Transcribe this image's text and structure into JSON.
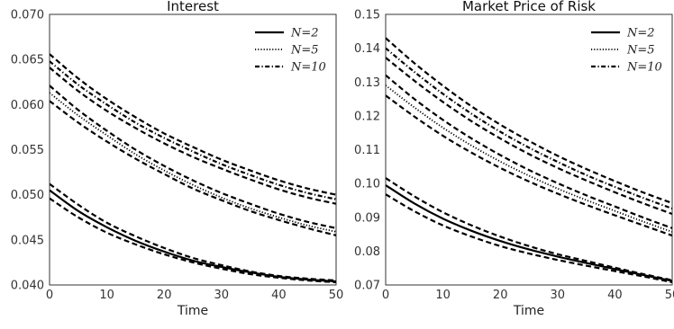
{
  "chart_data": [
    {
      "type": "line",
      "title": "Interest",
      "xlabel": "Time",
      "ylabel": "",
      "xlim": [
        0,
        50
      ],
      "ylim": [
        0.04,
        0.07
      ],
      "xticks": [
        "0",
        "10",
        "20",
        "30",
        "40",
        "50"
      ],
      "yticks": [
        "0.040",
        "0.045",
        "0.050",
        "0.055",
        "0.060",
        "0.065",
        "0.070"
      ],
      "legend_position": "top-right",
      "grid": false,
      "x": [
        0,
        5,
        10,
        15,
        20,
        25,
        30,
        35,
        40,
        45,
        50
      ],
      "series": [
        {
          "name": "N=2",
          "style": "solid",
          "values": [
            0.0505,
            0.0482,
            0.0464,
            0.0449,
            0.0437,
            0.0427,
            0.042,
            0.0414,
            0.0409,
            0.0406,
            0.0404
          ]
        },
        {
          "name": "N=2 upper band",
          "style": "dashed",
          "values": [
            0.0512,
            0.0489,
            0.0469,
            0.0454,
            0.0441,
            0.043,
            0.0422,
            0.0415,
            0.041,
            0.0407,
            0.0405
          ]
        },
        {
          "name": "N=2 lower band",
          "style": "dashed",
          "values": [
            0.0496,
            0.0475,
            0.0458,
            0.0445,
            0.0434,
            0.0425,
            0.0418,
            0.0412,
            0.0408,
            0.0405,
            0.0403
          ]
        },
        {
          "name": "N=5",
          "style": "dotted",
          "values": [
            0.0613,
            0.0588,
            0.0566,
            0.0545,
            0.0527,
            0.0511,
            0.0497,
            0.0485,
            0.0475,
            0.0466,
            0.0459
          ]
        },
        {
          "name": "N=5 upper band",
          "style": "dashed",
          "values": [
            0.0621,
            0.0594,
            0.0571,
            0.055,
            0.0532,
            0.0516,
            0.0502,
            0.049,
            0.0479,
            0.047,
            0.0463
          ]
        },
        {
          "name": "N=5 lower band",
          "style": "dashed",
          "values": [
            0.0604,
            0.058,
            0.0559,
            0.054,
            0.0523,
            0.0507,
            0.0494,
            0.0482,
            0.0472,
            0.0463,
            0.0455
          ]
        },
        {
          "name": "N=10",
          "style": "dashdot",
          "values": [
            0.0648,
            0.0622,
            0.06,
            0.058,
            0.0563,
            0.0548,
            0.0534,
            0.0522,
            0.0511,
            0.0502,
            0.0495
          ]
        },
        {
          "name": "N=10 upper band",
          "style": "dashed",
          "values": [
            0.0656,
            0.0629,
            0.0606,
            0.0586,
            0.0568,
            0.0553,
            0.0539,
            0.0527,
            0.0516,
            0.0507,
            0.05
          ]
        },
        {
          "name": "N=10 lower band",
          "style": "dashed",
          "values": [
            0.0641,
            0.0615,
            0.0593,
            0.0574,
            0.0557,
            0.0542,
            0.0529,
            0.0517,
            0.0506,
            0.0497,
            0.049
          ]
        }
      ]
    },
    {
      "type": "line",
      "title": "Market Price of Risk",
      "xlabel": "Time",
      "ylabel": "",
      "xlim": [
        0,
        50
      ],
      "ylim": [
        0.07,
        0.15
      ],
      "xticks": [
        "0",
        "10",
        "20",
        "30",
        "40",
        "50"
      ],
      "yticks": [
        "0.07",
        "0.08",
        "0.09",
        "0.10",
        "0.11",
        "0.12",
        "0.13",
        "0.14",
        "0.15"
      ],
      "legend_position": "top-right",
      "grid": false,
      "x": [
        0,
        5,
        10,
        15,
        20,
        25,
        30,
        35,
        40,
        45,
        50
      ],
      "series": [
        {
          "name": "N=2",
          "style": "solid",
          "values": [
            0.0995,
            0.0941,
            0.0896,
            0.086,
            0.083,
            0.0805,
            0.0784,
            0.0765,
            0.0747,
            0.0729,
            0.0712
          ]
        },
        {
          "name": "N=2 upper band",
          "style": "dashed",
          "values": [
            0.1016,
            0.0962,
            0.0915,
            0.0876,
            0.0843,
            0.0815,
            0.0791,
            0.0771,
            0.0751,
            0.0732,
            0.0714
          ]
        },
        {
          "name": "N=2 lower band",
          "style": "dashed",
          "values": [
            0.0968,
            0.0918,
            0.0876,
            0.0843,
            0.0815,
            0.0793,
            0.0774,
            0.0757,
            0.0741,
            0.0725,
            0.0708
          ]
        },
        {
          "name": "N=5",
          "style": "dotted",
          "values": [
            0.129,
            0.1225,
            0.1165,
            0.1112,
            0.1065,
            0.1023,
            0.0985,
            0.0951,
            0.0919,
            0.0887,
            0.0857
          ]
        },
        {
          "name": "N=5 upper band",
          "style": "dashed",
          "values": [
            0.132,
            0.125,
            0.1188,
            0.1133,
            0.1084,
            0.104,
            0.1001,
            0.0965,
            0.0932,
            0.0899,
            0.0868
          ]
        },
        {
          "name": "N=5 lower band",
          "style": "dashed",
          "values": [
            0.126,
            0.1198,
            0.1141,
            0.1091,
            0.1046,
            0.1006,
            0.097,
            0.0937,
            0.0906,
            0.0876,
            0.0846
          ]
        },
        {
          "name": "N=10",
          "style": "dashdot",
          "values": [
            0.14,
            0.133,
            0.1265,
            0.1206,
            0.1153,
            0.1106,
            0.1064,
            0.1025,
            0.099,
            0.0957,
            0.0926
          ]
        },
        {
          "name": "N=10 upper band",
          "style": "dashed",
          "values": [
            0.143,
            0.1356,
            0.1289,
            0.1228,
            0.1174,
            0.1126,
            0.1082,
            0.1043,
            0.1007,
            0.0973,
            0.0942
          ]
        },
        {
          "name": "N=10 lower band",
          "style": "dashed",
          "values": [
            0.1372,
            0.1304,
            0.1241,
            0.1184,
            0.1133,
            0.1087,
            0.1046,
            0.1009,
            0.0974,
            0.0941,
            0.091
          ]
        }
      ]
    }
  ],
  "legend": {
    "n2": "N=2",
    "n5": "N=5",
    "n10": "N=10"
  },
  "colors": {
    "line": "#000000",
    "axis": "#333333",
    "background": "#ffffff"
  }
}
